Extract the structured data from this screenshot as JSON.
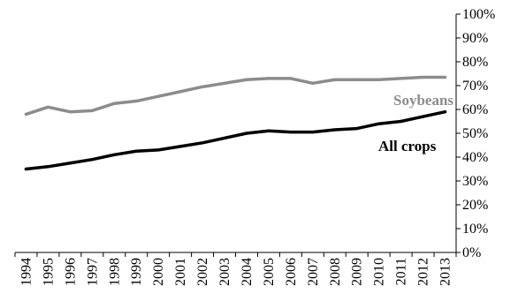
{
  "chart_data": {
    "type": "line",
    "x": [
      "1994",
      "1995",
      "1996",
      "1997",
      "1998",
      "1999",
      "2000",
      "2001",
      "2002",
      "2003",
      "2004",
      "2005",
      "2006",
      "2007",
      "2008",
      "2009",
      "2010",
      "2011",
      "2012",
      "2013"
    ],
    "ylim": [
      0,
      100
    ],
    "yticks": [
      "0%",
      "10%",
      "20%",
      "30%",
      "40%",
      "50%",
      "60%",
      "70%",
      "80%",
      "90%",
      "100%"
    ],
    "y_axis_position": "right",
    "grid": false,
    "legend": "inline-labels",
    "series": [
      {
        "name": "Soybeans",
        "color": "#8c8c8c",
        "values": [
          58,
          61,
          59,
          59.5,
          62.5,
          63.5,
          65.5,
          67.5,
          69.5,
          71,
          72.5,
          73,
          73,
          71,
          72.5,
          72.5,
          72.5,
          73,
          73.5,
          73.5
        ]
      },
      {
        "name": "All crops",
        "color": "#000000",
        "values": [
          35,
          36,
          37.5,
          39,
          41,
          42.5,
          43,
          44.5,
          46,
          48,
          50,
          51,
          50.5,
          50.5,
          51.5,
          52,
          54,
          55,
          57,
          59
        ]
      }
    ]
  }
}
